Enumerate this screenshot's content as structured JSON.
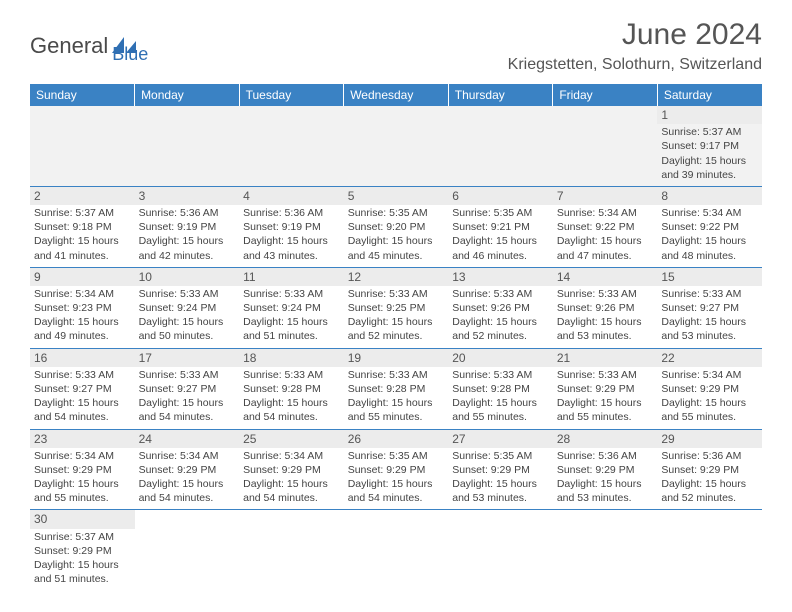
{
  "logo": {
    "text1": "General",
    "text2": "Blue"
  },
  "title": "June 2024",
  "location": "Kriegstetten, Solothurn, Switzerland",
  "colors": {
    "header_bg": "#3a82c4",
    "header_text": "#ffffff",
    "row_border": "#3a82c4",
    "daynum_bg": "#ececec",
    "logo_blue": "#2f6fb3",
    "text": "#444444"
  },
  "weekdays": [
    "Sunday",
    "Monday",
    "Tuesday",
    "Wednesday",
    "Thursday",
    "Friday",
    "Saturday"
  ],
  "weeks": [
    [
      null,
      null,
      null,
      null,
      null,
      null,
      {
        "day": 1,
        "sunrise": "5:37 AM",
        "sunset": "9:17 PM",
        "daylight": "Daylight: 15 hours and 39 minutes."
      }
    ],
    [
      {
        "day": 2,
        "sunrise": "5:37 AM",
        "sunset": "9:18 PM",
        "daylight": "Daylight: 15 hours and 41 minutes."
      },
      {
        "day": 3,
        "sunrise": "5:36 AM",
        "sunset": "9:19 PM",
        "daylight": "Daylight: 15 hours and 42 minutes."
      },
      {
        "day": 4,
        "sunrise": "5:36 AM",
        "sunset": "9:19 PM",
        "daylight": "Daylight: 15 hours and 43 minutes."
      },
      {
        "day": 5,
        "sunrise": "5:35 AM",
        "sunset": "9:20 PM",
        "daylight": "Daylight: 15 hours and 45 minutes."
      },
      {
        "day": 6,
        "sunrise": "5:35 AM",
        "sunset": "9:21 PM",
        "daylight": "Daylight: 15 hours and 46 minutes."
      },
      {
        "day": 7,
        "sunrise": "5:34 AM",
        "sunset": "9:22 PM",
        "daylight": "Daylight: 15 hours and 47 minutes."
      },
      {
        "day": 8,
        "sunrise": "5:34 AM",
        "sunset": "9:22 PM",
        "daylight": "Daylight: 15 hours and 48 minutes."
      }
    ],
    [
      {
        "day": 9,
        "sunrise": "5:34 AM",
        "sunset": "9:23 PM",
        "daylight": "Daylight: 15 hours and 49 minutes."
      },
      {
        "day": 10,
        "sunrise": "5:33 AM",
        "sunset": "9:24 PM",
        "daylight": "Daylight: 15 hours and 50 minutes."
      },
      {
        "day": 11,
        "sunrise": "5:33 AM",
        "sunset": "9:24 PM",
        "daylight": "Daylight: 15 hours and 51 minutes."
      },
      {
        "day": 12,
        "sunrise": "5:33 AM",
        "sunset": "9:25 PM",
        "daylight": "Daylight: 15 hours and 52 minutes."
      },
      {
        "day": 13,
        "sunrise": "5:33 AM",
        "sunset": "9:26 PM",
        "daylight": "Daylight: 15 hours and 52 minutes."
      },
      {
        "day": 14,
        "sunrise": "5:33 AM",
        "sunset": "9:26 PM",
        "daylight": "Daylight: 15 hours and 53 minutes."
      },
      {
        "day": 15,
        "sunrise": "5:33 AM",
        "sunset": "9:27 PM",
        "daylight": "Daylight: 15 hours and 53 minutes."
      }
    ],
    [
      {
        "day": 16,
        "sunrise": "5:33 AM",
        "sunset": "9:27 PM",
        "daylight": "Daylight: 15 hours and 54 minutes."
      },
      {
        "day": 17,
        "sunrise": "5:33 AM",
        "sunset": "9:27 PM",
        "daylight": "Daylight: 15 hours and 54 minutes."
      },
      {
        "day": 18,
        "sunrise": "5:33 AM",
        "sunset": "9:28 PM",
        "daylight": "Daylight: 15 hours and 54 minutes."
      },
      {
        "day": 19,
        "sunrise": "5:33 AM",
        "sunset": "9:28 PM",
        "daylight": "Daylight: 15 hours and 55 minutes."
      },
      {
        "day": 20,
        "sunrise": "5:33 AM",
        "sunset": "9:28 PM",
        "daylight": "Daylight: 15 hours and 55 minutes."
      },
      {
        "day": 21,
        "sunrise": "5:33 AM",
        "sunset": "9:29 PM",
        "daylight": "Daylight: 15 hours and 55 minutes."
      },
      {
        "day": 22,
        "sunrise": "5:34 AM",
        "sunset": "9:29 PM",
        "daylight": "Daylight: 15 hours and 55 minutes."
      }
    ],
    [
      {
        "day": 23,
        "sunrise": "5:34 AM",
        "sunset": "9:29 PM",
        "daylight": "Daylight: 15 hours and 55 minutes."
      },
      {
        "day": 24,
        "sunrise": "5:34 AM",
        "sunset": "9:29 PM",
        "daylight": "Daylight: 15 hours and 54 minutes."
      },
      {
        "day": 25,
        "sunrise": "5:34 AM",
        "sunset": "9:29 PM",
        "daylight": "Daylight: 15 hours and 54 minutes."
      },
      {
        "day": 26,
        "sunrise": "5:35 AM",
        "sunset": "9:29 PM",
        "daylight": "Daylight: 15 hours and 54 minutes."
      },
      {
        "day": 27,
        "sunrise": "5:35 AM",
        "sunset": "9:29 PM",
        "daylight": "Daylight: 15 hours and 53 minutes."
      },
      {
        "day": 28,
        "sunrise": "5:36 AM",
        "sunset": "9:29 PM",
        "daylight": "Daylight: 15 hours and 53 minutes."
      },
      {
        "day": 29,
        "sunrise": "5:36 AM",
        "sunset": "9:29 PM",
        "daylight": "Daylight: 15 hours and 52 minutes."
      }
    ],
    [
      {
        "day": 30,
        "sunrise": "5:37 AM",
        "sunset": "9:29 PM",
        "daylight": "Daylight: 15 hours and 51 minutes."
      },
      null,
      null,
      null,
      null,
      null,
      null
    ]
  ]
}
